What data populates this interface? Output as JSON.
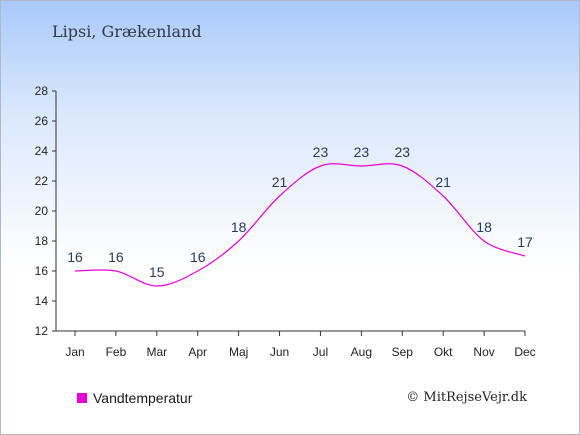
{
  "title": "Lipsi, Grækenland",
  "legend_label": "Vandtemperatur",
  "credit": "© MitRejseVejr.dk",
  "colors": {
    "series": "#e800d8",
    "axis": "#333333"
  },
  "chart_data": {
    "type": "line",
    "categories": [
      "Jan",
      "Feb",
      "Mar",
      "Apr",
      "Maj",
      "Jun",
      "Jul",
      "Aug",
      "Sep",
      "Okt",
      "Nov",
      "Dec"
    ],
    "series": [
      {
        "name": "Vandtemperatur",
        "values": [
          16,
          16,
          15,
          16,
          18,
          21,
          23,
          23,
          23,
          21,
          18,
          17
        ]
      }
    ],
    "ylim": [
      12,
      28
    ],
    "yticks": [
      12,
      14,
      16,
      18,
      20,
      22,
      24,
      26,
      28
    ],
    "grid": false,
    "legend": "bottom-left"
  }
}
